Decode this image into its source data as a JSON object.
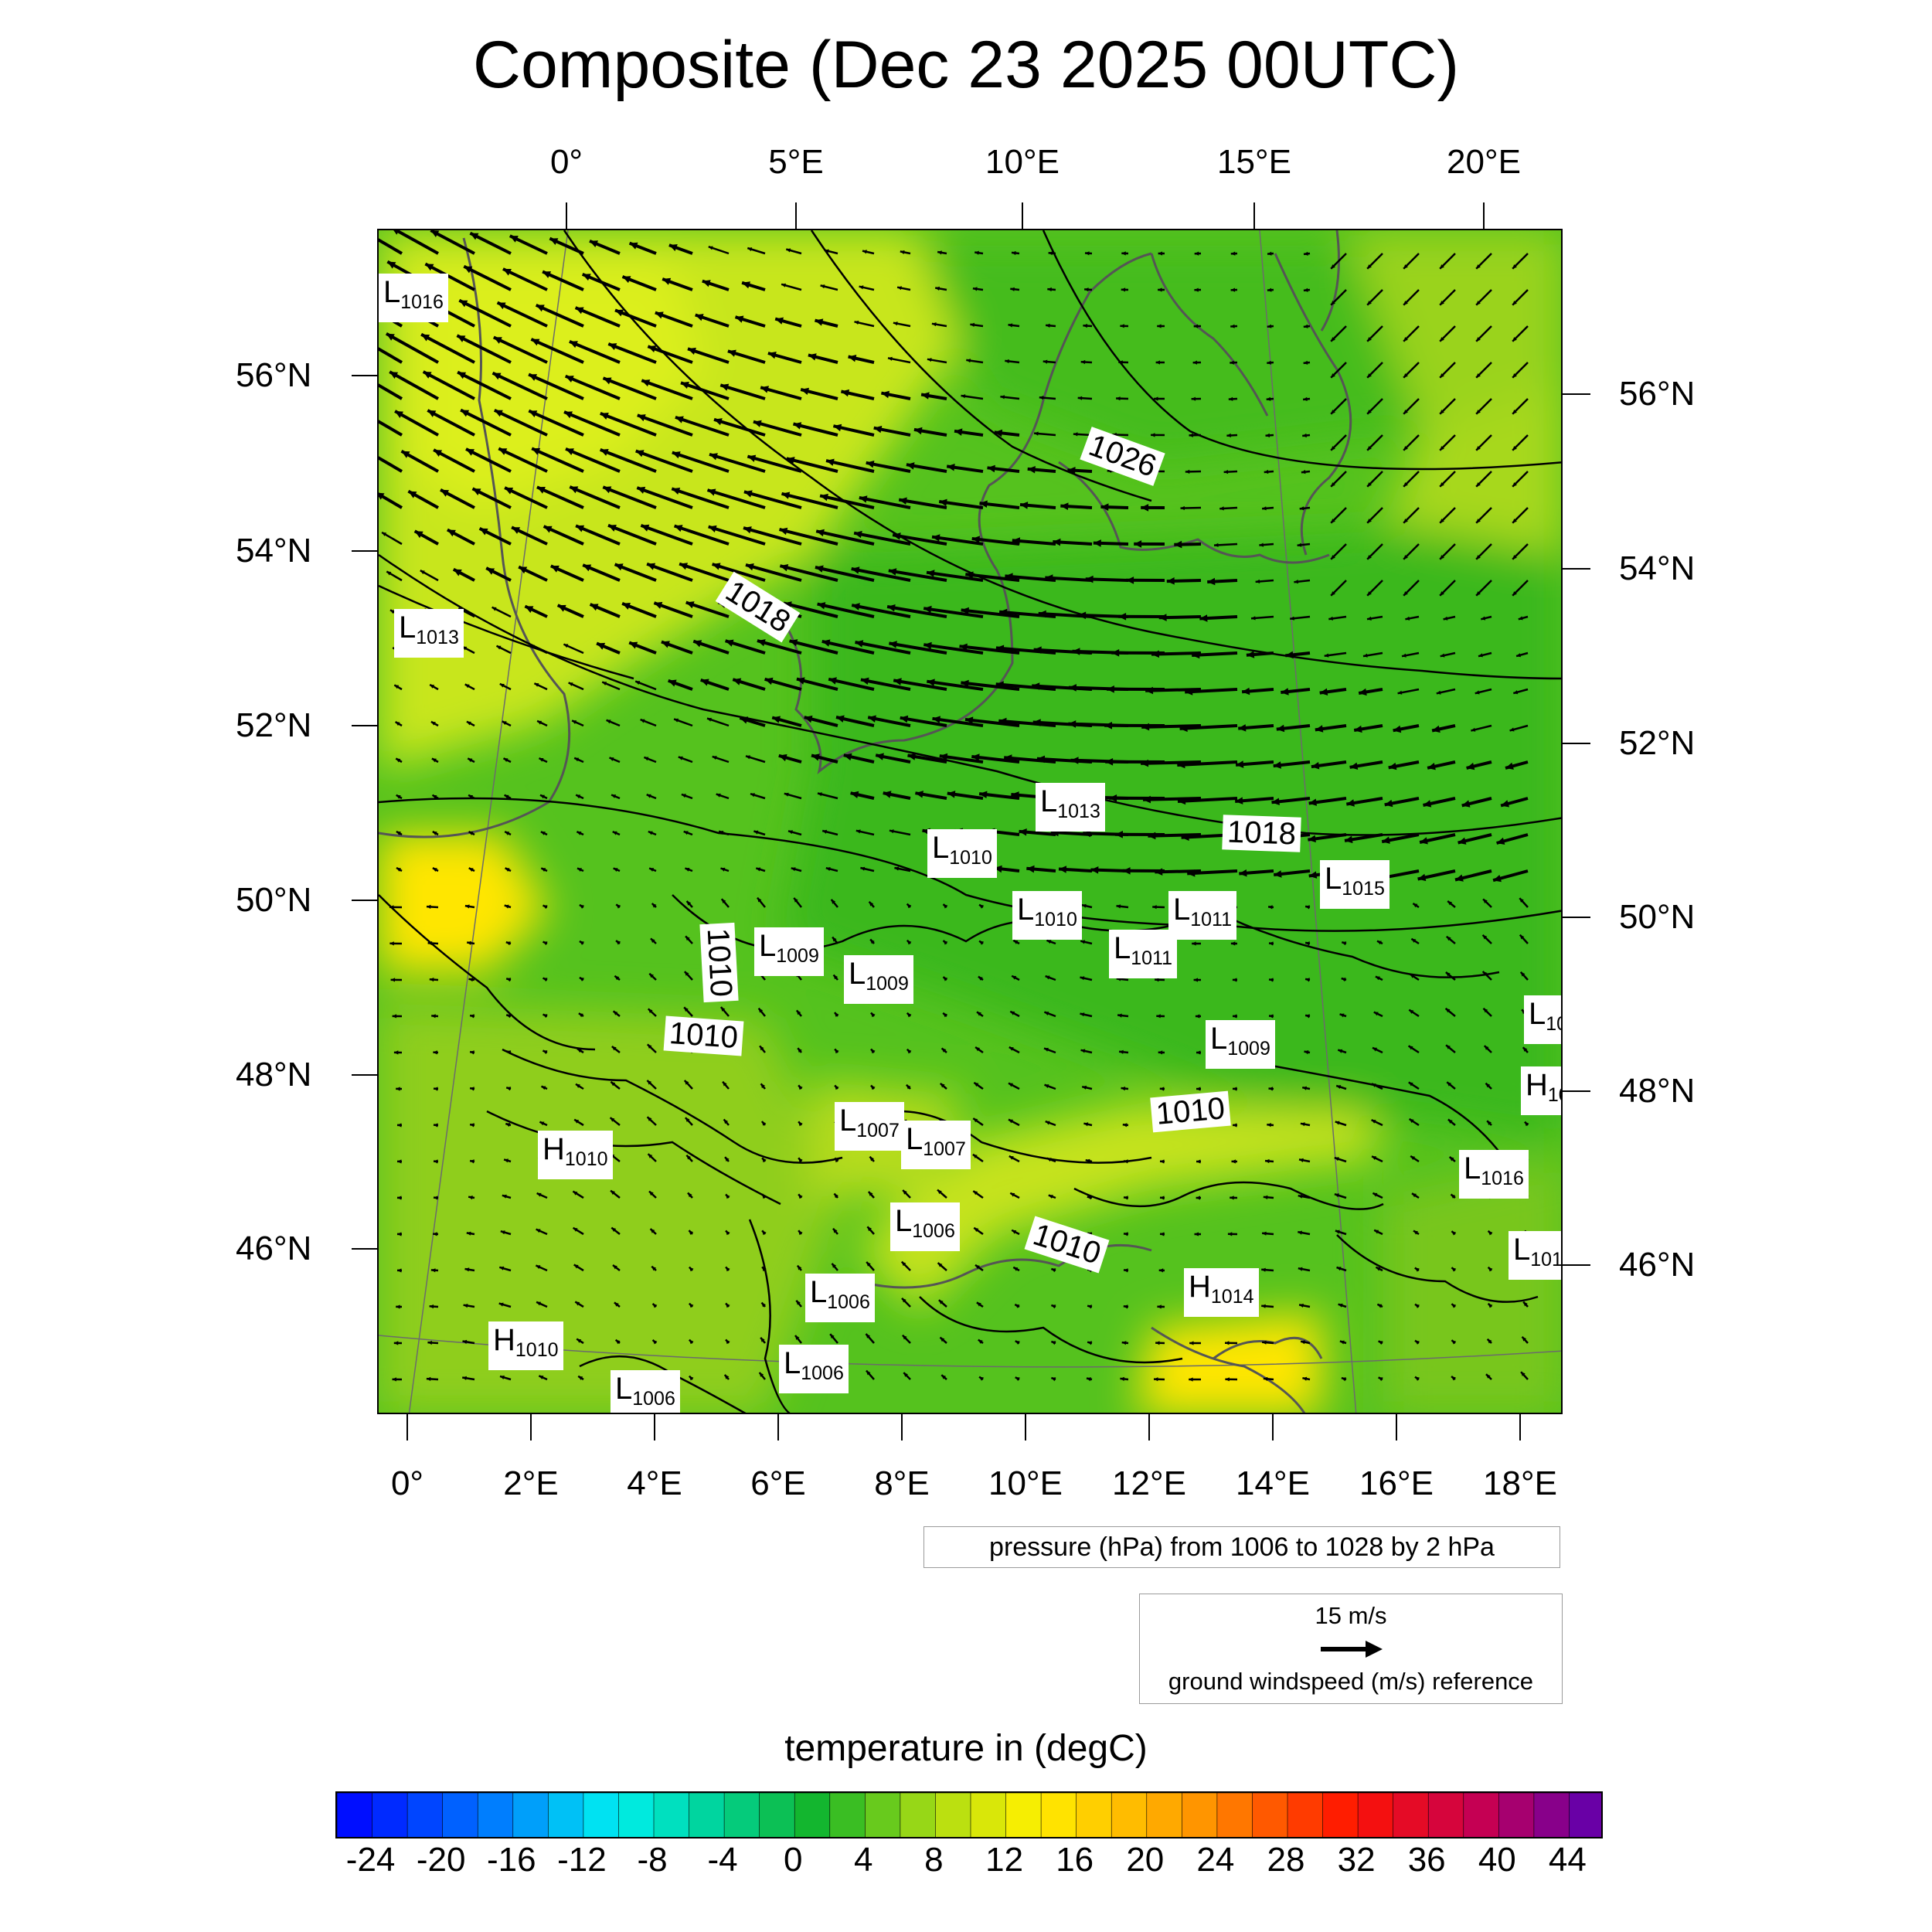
{
  "title": "Composite (Dec 23 2025 00UTC)",
  "axes": {
    "top_lon": [
      "0°",
      "5°E",
      "10°E",
      "15°E",
      "20°E"
    ],
    "bottom_lon": [
      "0°",
      "2°E",
      "4°E",
      "6°E",
      "8°E",
      "10°E",
      "12°E",
      "14°E",
      "16°E",
      "18°E"
    ],
    "left_lat": [
      "56°N",
      "54°N",
      "52°N",
      "50°N",
      "48°N",
      "46°N"
    ],
    "right_lat": [
      "56°N",
      "54°N",
      "52°N",
      "50°N",
      "48°N",
      "46°N"
    ]
  },
  "pressure_centers": [
    {
      "type": "L",
      "value": "1016"
    },
    {
      "type": "L",
      "value": "1013"
    },
    {
      "type": "L",
      "value": "1013"
    },
    {
      "type": "L",
      "value": "1010"
    },
    {
      "type": "L",
      "value": "1015"
    },
    {
      "type": "L",
      "value": "1010"
    },
    {
      "type": "L",
      "value": "1011"
    },
    {
      "type": "L",
      "value": "1009"
    },
    {
      "type": "L",
      "value": "1009"
    },
    {
      "type": "L",
      "value": "1011"
    },
    {
      "type": "L",
      "value": "1009"
    },
    {
      "type": "L",
      "value": "10"
    },
    {
      "type": "H",
      "value": "10"
    },
    {
      "type": "L",
      "value": "1007"
    },
    {
      "type": "L",
      "value": "1007"
    },
    {
      "type": "H",
      "value": "1010"
    },
    {
      "type": "L",
      "value": "1016"
    },
    {
      "type": "L",
      "value": "1006"
    },
    {
      "type": "L",
      "value": "101"
    },
    {
      "type": "L",
      "value": "1006"
    },
    {
      "type": "H",
      "value": "1014"
    },
    {
      "type": "H",
      "value": "1010"
    },
    {
      "type": "L",
      "value": "1006"
    },
    {
      "type": "L",
      "value": "1006"
    }
  ],
  "isobar_labels": [
    "1026",
    "1018",
    "1018",
    "1010",
    "1010",
    "1010",
    "1010"
  ],
  "pressure_note": "pressure (hPa) from 1006 to 1028 by 2 hPa",
  "wind_reference": {
    "speed": "15 m/s",
    "label": "ground windspeed (m/s) reference"
  },
  "colorbar": {
    "title": "temperature in (degC)",
    "min": -26,
    "max": 46,
    "step": 2,
    "ticks": [
      "-24",
      "-20",
      "-16",
      "-12",
      "-8",
      "-4",
      "0",
      "4",
      "8",
      "12",
      "16",
      "20",
      "24",
      "28",
      "32",
      "36",
      "40",
      "44"
    ]
  },
  "colors": {
    "field_main": "#55c21e",
    "field_dark": "#2fb21a",
    "field_warm": "#c8e61e",
    "field_hot": "#ffe600",
    "coastline": "#555555",
    "isobar": "#000000"
  }
}
